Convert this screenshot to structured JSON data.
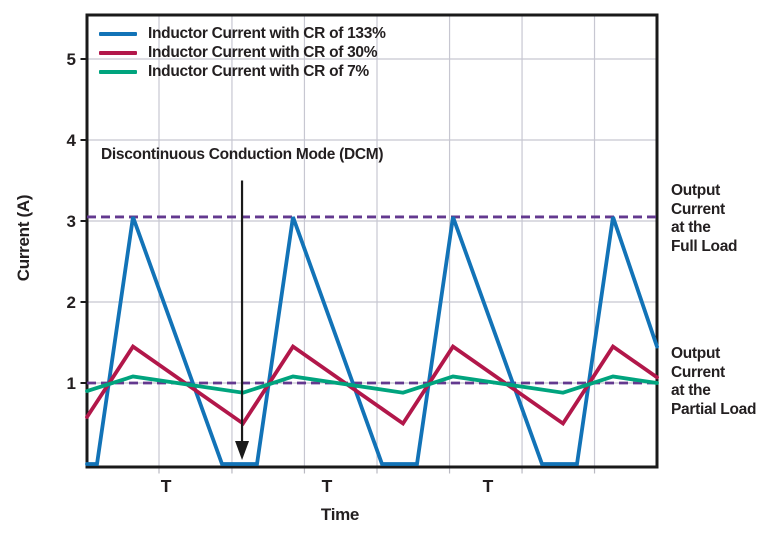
{
  "figure": {
    "ylabel": "Current (A)",
    "xlabel": "Time",
    "annotation_dcm": "Discontinuous Conduction Mode (DCM)",
    "label_full_load": "Output\nCurrent\nat the\nFull Load",
    "label_partial_load": "Output\nCurrent\nat the\nPartial Load"
  },
  "chart_data": {
    "type": "line",
    "title": "",
    "xlabel": "Time",
    "ylabel": "Current (A)",
    "current_unit": "A",
    "x_unit": "switching periods (T)",
    "xlim_t": [
      0.025,
      3.5875
    ],
    "ylim": [
      0,
      5.55
    ],
    "yticks": [
      1,
      2,
      3,
      4,
      5
    ],
    "grid": true,
    "legend_position": "top-left",
    "x_gridlines_t": [
      0.475,
      0.931,
      1.384,
      1.8375,
      2.291,
      2.744,
      3.197
    ],
    "xtick_labels": [
      {
        "t": 0.519,
        "label": "T"
      },
      {
        "t": 1.525,
        "label": "T"
      },
      {
        "t": 2.531,
        "label": "T"
      }
    ],
    "series": [
      {
        "label": "Inductor Current with CR of 133%",
        "color": "#1273B7",
        "peak_A": 3.05,
        "min_A": 0,
        "mode": "discontinuous",
        "points": [
          [
            0.025,
            0
          ],
          [
            0.0875,
            0
          ],
          [
            0.3125,
            3.05
          ],
          [
            0.869,
            0
          ],
          [
            1.0875,
            0
          ],
          [
            1.3125,
            3.05
          ],
          [
            1.869,
            0
          ],
          [
            2.0875,
            0
          ],
          [
            2.3125,
            3.05
          ],
          [
            2.869,
            0
          ],
          [
            3.0875,
            0
          ],
          [
            3.3125,
            3.05
          ],
          [
            3.5875,
            1.45
          ]
        ]
      },
      {
        "label": "Inductor Current with CR of 30%",
        "color": "#B2174A",
        "peak_A": 1.45,
        "min_A": 0.5,
        "mode": "continuous",
        "points": [
          [
            0.025,
            0.58
          ],
          [
            0.3125,
            1.45
          ],
          [
            1,
            0.5
          ],
          [
            1.3125,
            1.45
          ],
          [
            2,
            0.5
          ],
          [
            2.3125,
            1.45
          ],
          [
            3,
            0.5
          ],
          [
            3.3125,
            1.45
          ],
          [
            3.5875,
            1.07
          ]
        ]
      },
      {
        "label": "Inductor Current with CR of 7%",
        "color": "#00A47E",
        "peak_A": 1.08,
        "min_A": 0.88,
        "mode": "continuous",
        "points": [
          [
            0.025,
            0.9
          ],
          [
            0.3125,
            1.08
          ],
          [
            1,
            0.88
          ],
          [
            1.3125,
            1.08
          ],
          [
            2,
            0.88
          ],
          [
            2.3125,
            1.08
          ],
          [
            3,
            0.88
          ],
          [
            3.3125,
            1.08
          ],
          [
            3.5875,
            1.0
          ]
        ]
      }
    ],
    "reference_lines": [
      {
        "value_A": 3.05,
        "style": "dashed",
        "color": "#63398F",
        "label": "Output Current at the Full Load"
      },
      {
        "value_A": 1.0,
        "style": "dashed",
        "color": "#63398F",
        "label": "Output Current at the Partial Load"
      }
    ],
    "annotation": {
      "text": "Discontinuous Conduction Mode (DCM)",
      "arrow_t": 0.994,
      "arrow_from_A": 3.5,
      "arrow_to_A": 0.05
    },
    "colors": {
      "axis": "#1A1A1A",
      "grid": "#C7C7D1",
      "text": "#231F20",
      "background": "#FFFFFF"
    }
  }
}
